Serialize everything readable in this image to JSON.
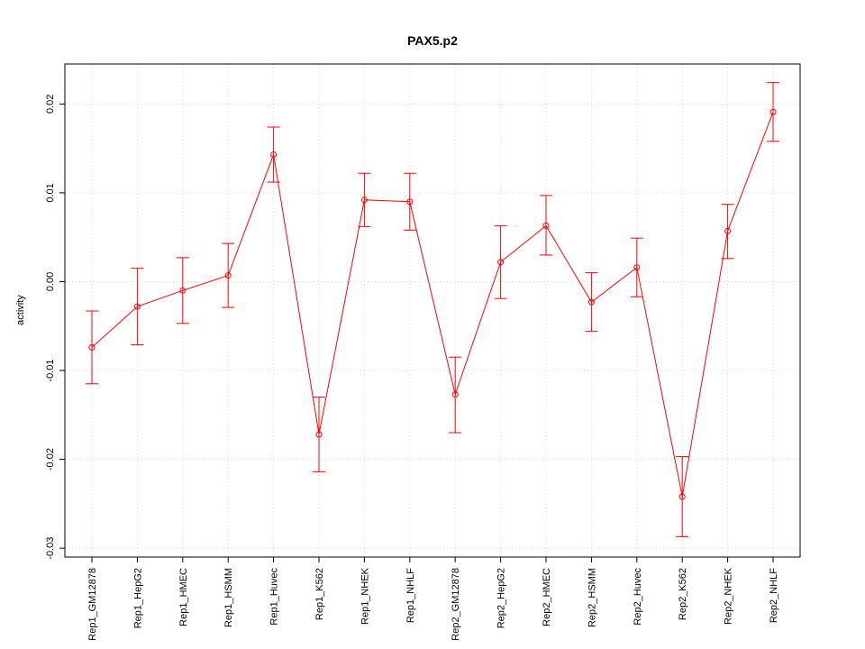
{
  "chart_data": {
    "type": "line",
    "title": "PAX5.p2",
    "xlabel": "",
    "ylabel": "activity",
    "ylim": [
      -0.031,
      0.0245
    ],
    "yticks": [
      -0.03,
      -0.02,
      -0.01,
      0.0,
      0.01,
      0.02
    ],
    "ytick_labels": [
      "-0.03",
      "-0.02",
      "-0.01",
      "0.00",
      "0.01",
      "0.02"
    ],
    "grid": true,
    "series_color": "#ff0000",
    "grid_color": "#d3d3d3",
    "categories": [
      "Rep1_GM12878",
      "Rep1_HepG2",
      "Rep1_HMEC",
      "Rep1_HSMM",
      "Rep1_Huvec",
      "Rep1_K562",
      "Rep1_NHEK",
      "Rep1_NHLF",
      "Rep2_GM12878",
      "Rep2_HepG2",
      "Rep2_HMEC",
      "Rep2_HSMM",
      "Rep2_Huvec",
      "Rep2_K562",
      "Rep2_NHEK",
      "Rep2_NHLF"
    ],
    "values": [
      -0.0074,
      -0.0028,
      -0.001,
      0.0007,
      0.0143,
      -0.0172,
      0.0092,
      0.009,
      -0.0127,
      0.0022,
      0.0063,
      -0.0023,
      0.0016,
      -0.0242,
      0.0057,
      0.0191
    ],
    "error_low": [
      -0.0115,
      -0.0071,
      -0.0047,
      -0.0029,
      0.0112,
      -0.0214,
      0.0062,
      0.0058,
      -0.017,
      -0.0019,
      0.003,
      -0.0056,
      -0.0017,
      -0.0287,
      0.0026,
      0.0158
    ],
    "error_high": [
      -0.0033,
      0.0015,
      0.0027,
      0.0043,
      0.0174,
      -0.013,
      0.0122,
      0.0122,
      -0.0085,
      0.0063,
      0.0097,
      0.001,
      0.0049,
      -0.0197,
      0.0087,
      0.0224
    ]
  }
}
